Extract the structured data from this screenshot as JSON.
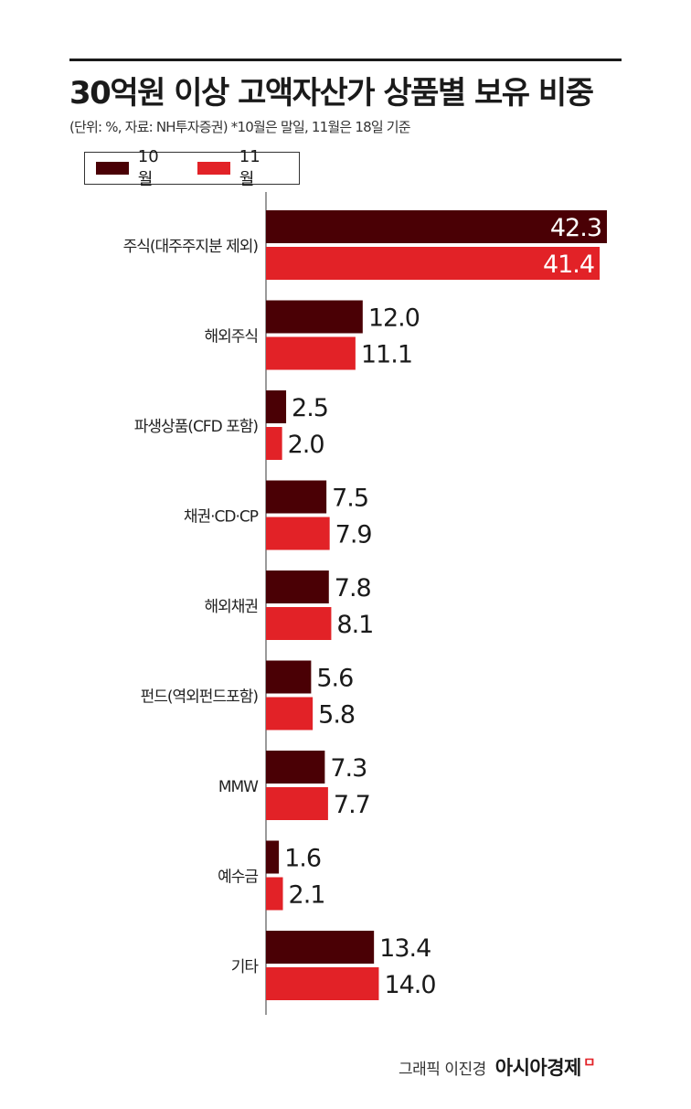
{
  "header": {
    "title": "30억원 이상 고액자산가 상품별 보유 비중",
    "subtitle": "(단위: %, 자료: NH투자증권) *10월은 말일, 11월은 18일 기준"
  },
  "colors": {
    "october": "#4a0005",
    "november": "#e22227"
  },
  "footer": {
    "credit": "그래픽 이진경",
    "brand": "아시아경제",
    "brand_mark": "ㅁ"
  },
  "chart_data": {
    "type": "bar",
    "orientation": "horizontal",
    "categories": [
      "주식(대주주지분 제외)",
      "해외주식",
      "파생상품(CFD 포함)",
      "채권·CD·CP",
      "해외채권",
      "펀드(역외펀드포함)",
      "MMW",
      "예수금",
      "기타"
    ],
    "series": [
      {
        "name": "10월",
        "values": [
          42.3,
          12.0,
          2.5,
          7.5,
          7.8,
          5.6,
          7.3,
          1.6,
          13.4
        ]
      },
      {
        "name": "11월",
        "values": [
          41.4,
          11.1,
          2.0,
          7.9,
          8.1,
          5.8,
          7.7,
          2.1,
          14.0
        ]
      }
    ],
    "value_labels": [
      [
        "42.3",
        "12.0",
        "2.5",
        "7.5",
        "7.8",
        "5.6",
        "7.3",
        "1.6",
        "13.4"
      ],
      [
        "41.4",
        "11.1",
        "2.0",
        "7.9",
        "8.1",
        "5.8",
        "7.7",
        "2.1",
        "14.0"
      ]
    ],
    "xlim": [
      0,
      42.3
    ],
    "grid": false,
    "legend_position": "top-left"
  }
}
